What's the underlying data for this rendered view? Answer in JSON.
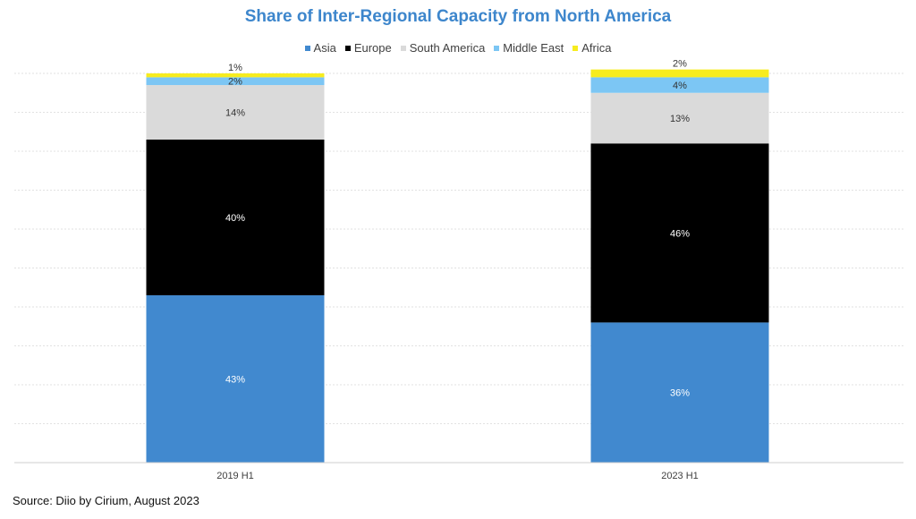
{
  "chart_data": {
    "type": "bar",
    "stacked": true,
    "title": "Share of Inter-Regional Capacity from North America",
    "categories": [
      "2019 H1",
      "2023 H1"
    ],
    "series": [
      {
        "name": "Asia",
        "color": "#4189cf",
        "label_color": "#ffffff",
        "values": [
          43,
          36
        ],
        "labels": [
          "43%",
          "36%"
        ]
      },
      {
        "name": "Europe",
        "color": "#000000",
        "label_color": "#ffffff",
        "values": [
          40,
          46
        ],
        "labels": [
          "40%",
          "46%"
        ]
      },
      {
        "name": "South America",
        "color": "#dadada",
        "label_color": "#333333",
        "values": [
          14,
          13
        ],
        "labels": [
          "14%",
          "13%"
        ]
      },
      {
        "name": "Middle East",
        "color": "#7cc6f4",
        "label_color": "#333333",
        "values": [
          2,
          4
        ],
        "labels": [
          "2%",
          "4%"
        ]
      },
      {
        "name": "Africa",
        "color": "#f7ec1f",
        "label_color": "#333333",
        "values": [
          1,
          2
        ],
        "labels": [
          "1%",
          "2%"
        ]
      }
    ],
    "ylim": [
      0,
      100
    ],
    "gridlines": true,
    "legend_position": "top",
    "xlabel": "",
    "ylabel": ""
  },
  "source": "Source: Diio by Cirium, August 2023"
}
